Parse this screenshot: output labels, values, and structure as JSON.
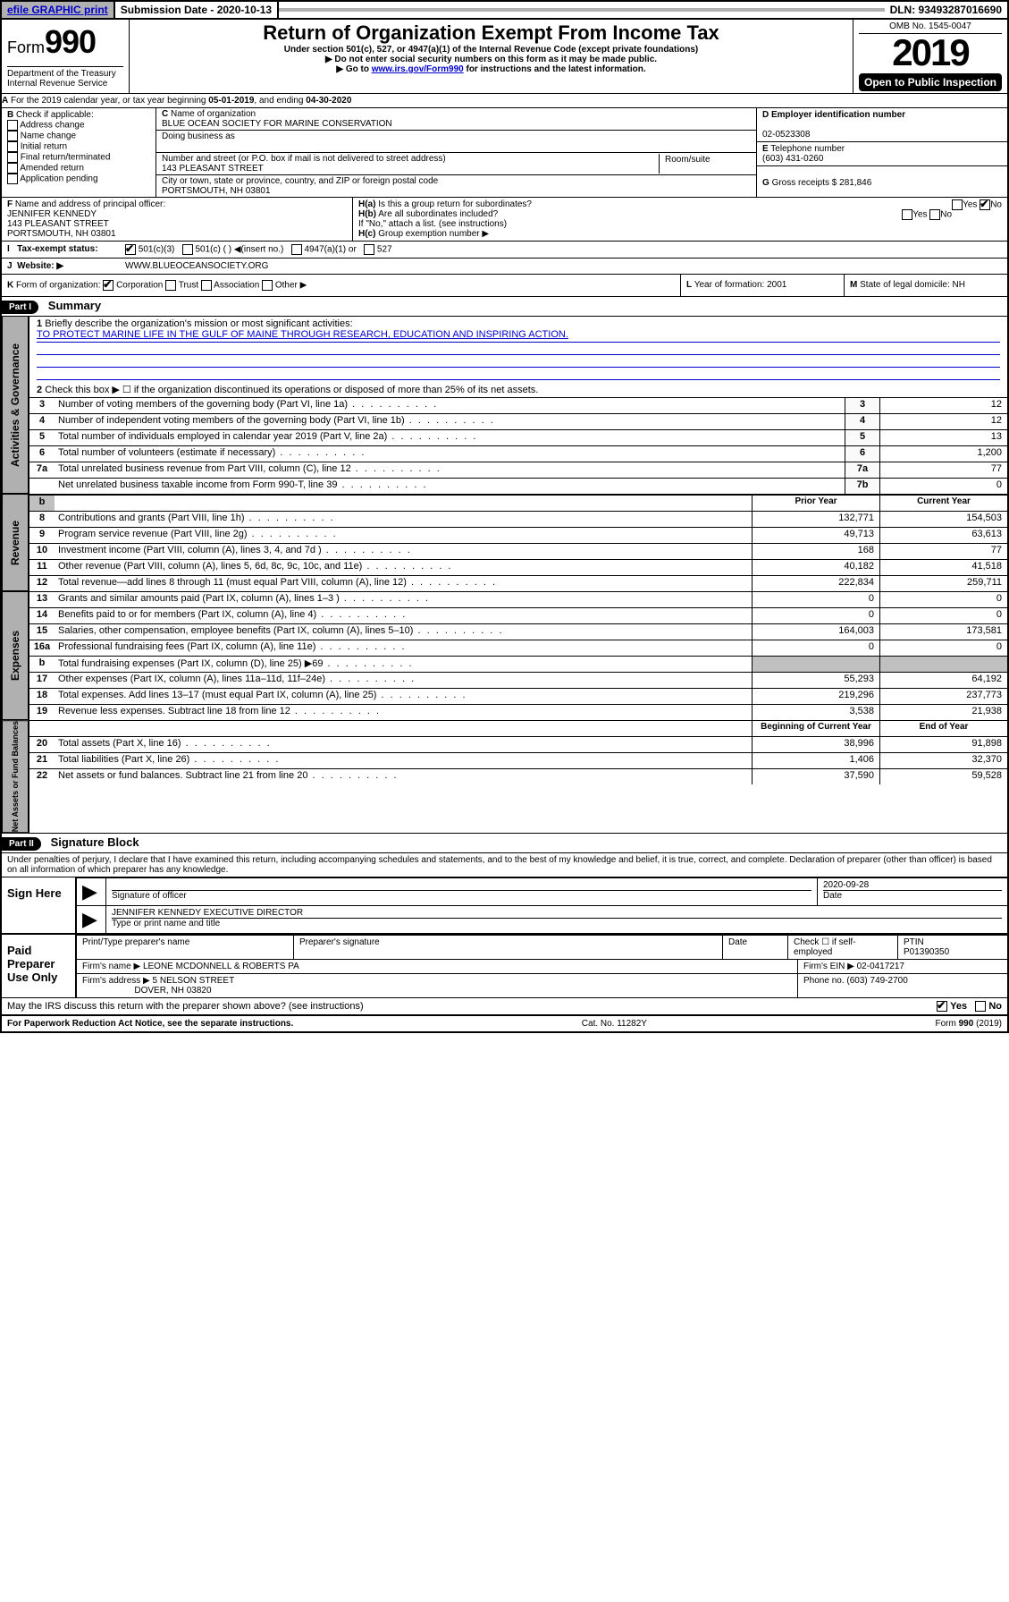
{
  "colors": {
    "link_blue": "#0000cc",
    "shade_gray": "#b0b0b0",
    "black": "#000000",
    "white": "#ffffff"
  },
  "topbar": {
    "efile": "efile GRAPHIC print",
    "subdate_label": "Submission Date - 2020-10-13",
    "dln": "DLN: 93493287016690"
  },
  "header": {
    "form_prefix": "Form",
    "form_no": "990",
    "title": "Return of Organization Exempt From Income Tax",
    "subtitle": "Under section 501(c), 527, or 4947(a)(1) of the Internal Revenue Code (except private foundations)",
    "note1": "Do not enter social security numbers on this form as it may be made public.",
    "note2_pre": "Go to ",
    "note2_link": "www.irs.gov/Form990",
    "note2_post": " for instructions and the latest information.",
    "omb": "OMB No. 1545-0047",
    "year": "2019",
    "open": "Open to Public Inspection",
    "dept": "Department of the Treasury",
    "irs": "Internal Revenue Service"
  },
  "A": {
    "text_pre": "For the 2019 calendar year, or tax year beginning ",
    "begin": "05-01-2019",
    "mid": ", and ending ",
    "end": "04-30-2020"
  },
  "B": {
    "label": "Check if applicable:",
    "items": [
      "Address change",
      "Name change",
      "Initial return",
      "Final return/terminated",
      "Amended return",
      "Application pending"
    ]
  },
  "C": {
    "name_label": "Name of organization",
    "name": "BLUE OCEAN SOCIETY FOR MARINE CONSERVATION",
    "dba_label": "Doing business as",
    "dba": "",
    "addr_label": "Number and street (or P.O. box if mail is not delivered to street address)",
    "addr": "143 PLEASANT STREET",
    "room_label": "Room/suite",
    "room": "",
    "city_label": "City or town, state or province, country, and ZIP or foreign postal code",
    "city": "PORTSMOUTH, NH  03801"
  },
  "D": {
    "label": "Employer identification number",
    "value": "02-0523308"
  },
  "E": {
    "label": "Telephone number",
    "value": "(603) 431-0260"
  },
  "G": {
    "label": "Gross receipts $",
    "value": "281,846"
  },
  "F": {
    "label": "Name and address of principal officer:",
    "name": "JENNIFER KENNEDY",
    "addr1": "143 PLEASANT STREET",
    "addr2": "PORTSMOUTH, NH  03801"
  },
  "H": {
    "a": "Is this a group return for subordinates?",
    "a_yes": "Yes",
    "a_no": "No",
    "b": "Are all subordinates included?",
    "b_yes": "Yes",
    "b_no": "No",
    "b_note": "If \"No,\" attach a list. (see instructions)",
    "c": "Group exemption number ▶"
  },
  "I": {
    "label": "Tax-exempt status:",
    "opt1": "501(c)(3)",
    "opt2": "501(c) ( ) ◀(insert no.)",
    "opt3": "4947(a)(1) or",
    "opt4": "527"
  },
  "J": {
    "label": "Website: ▶",
    "value": "WWW.BLUEOCEANSOCIETY.ORG"
  },
  "K": {
    "label": "Form of organization:",
    "opts": [
      "Corporation",
      "Trust",
      "Association",
      "Other ▶"
    ]
  },
  "L": {
    "label": "Year of formation:",
    "value": "2001"
  },
  "M": {
    "label": "State of legal domicile:",
    "value": "NH"
  },
  "part1": {
    "hdr": "Part I",
    "title": "Summary",
    "q1_label": "Briefly describe the organization's mission or most significant activities:",
    "q1_value": "TO PROTECT MARINE LIFE IN THE GULF OF MAINE THROUGH RESEARCH, EDUCATION AND INSPIRING ACTION.",
    "q2": "Check this box ▶ ☐  if the organization discontinued its operations or disposed of more than 25% of its net assets.",
    "sections": {
      "gov": "Activities & Governance",
      "rev": "Revenue",
      "exp": "Expenses",
      "net": "Net Assets or Fund Balances"
    },
    "col_prior": "Prior Year",
    "col_current": "Current Year",
    "col_begin": "Beginning of Current Year",
    "col_end": "End of Year",
    "lines_gov": [
      {
        "n": "3",
        "d": "Number of voting members of the governing body (Part VI, line 1a)",
        "box": "3",
        "v": "12"
      },
      {
        "n": "4",
        "d": "Number of independent voting members of the governing body (Part VI, line 1b)",
        "box": "4",
        "v": "12"
      },
      {
        "n": "5",
        "d": "Total number of individuals employed in calendar year 2019 (Part V, line 2a)",
        "box": "5",
        "v": "13"
      },
      {
        "n": "6",
        "d": "Total number of volunteers (estimate if necessary)",
        "box": "6",
        "v": "1,200"
      },
      {
        "n": "7a",
        "d": "Total unrelated business revenue from Part VIII, column (C), line 12",
        "box": "7a",
        "v": "77"
      },
      {
        "n": "",
        "d": "Net unrelated business taxable income from Form 990-T, line 39",
        "box": "7b",
        "v": "0"
      }
    ],
    "lines_rev": [
      {
        "n": "8",
        "d": "Contributions and grants (Part VIII, line 1h)",
        "p": "132,771",
        "c": "154,503"
      },
      {
        "n": "9",
        "d": "Program service revenue (Part VIII, line 2g)",
        "p": "49,713",
        "c": "63,613"
      },
      {
        "n": "10",
        "d": "Investment income (Part VIII, column (A), lines 3, 4, and 7d )",
        "p": "168",
        "c": "77"
      },
      {
        "n": "11",
        "d": "Other revenue (Part VIII, column (A), lines 5, 6d, 8c, 9c, 10c, and 11e)",
        "p": "40,182",
        "c": "41,518"
      },
      {
        "n": "12",
        "d": "Total revenue—add lines 8 through 11 (must equal Part VIII, column (A), line 12)",
        "p": "222,834",
        "c": "259,711"
      }
    ],
    "lines_exp": [
      {
        "n": "13",
        "d": "Grants and similar amounts paid (Part IX, column (A), lines 1–3 )",
        "p": "0",
        "c": "0"
      },
      {
        "n": "14",
        "d": "Benefits paid to or for members (Part IX, column (A), line 4)",
        "p": "0",
        "c": "0"
      },
      {
        "n": "15",
        "d": "Salaries, other compensation, employee benefits (Part IX, column (A), lines 5–10)",
        "p": "164,003",
        "c": "173,581"
      },
      {
        "n": "16a",
        "d": "Professional fundraising fees (Part IX, column (A), line 11e)",
        "p": "0",
        "c": "0"
      },
      {
        "n": "b",
        "d": "Total fundraising expenses (Part IX, column (D), line 25) ▶69",
        "p": "",
        "c": ""
      },
      {
        "n": "17",
        "d": "Other expenses (Part IX, column (A), lines 11a–11d, 11f–24e)",
        "p": "55,293",
        "c": "64,192"
      },
      {
        "n": "18",
        "d": "Total expenses. Add lines 13–17 (must equal Part IX, column (A), line 25)",
        "p": "219,296",
        "c": "237,773"
      },
      {
        "n": "19",
        "d": "Revenue less expenses. Subtract line 18 from line 12",
        "p": "3,538",
        "c": "21,938"
      }
    ],
    "lines_net": [
      {
        "n": "20",
        "d": "Total assets (Part X, line 16)",
        "p": "38,996",
        "c": "91,898"
      },
      {
        "n": "21",
        "d": "Total liabilities (Part X, line 26)",
        "p": "1,406",
        "c": "32,370"
      },
      {
        "n": "22",
        "d": "Net assets or fund balances. Subtract line 21 from line 20",
        "p": "37,590",
        "c": "59,528"
      }
    ]
  },
  "part2": {
    "hdr": "Part II",
    "title": "Signature Block",
    "decl": "Under penalties of perjury, I declare that I have examined this return, including accompanying schedules and statements, and to the best of my knowledge and belief, it is true, correct, and complete. Declaration of preparer (other than officer) is based on all information of which preparer has any knowledge."
  },
  "sign": {
    "label": "Sign Here",
    "sig_of": "Signature of officer",
    "date": "2020-09-28",
    "date_label": "Date",
    "name": "JENNIFER KENNEDY  EXECUTIVE DIRECTOR",
    "name_label": "Type or print name and title"
  },
  "preparer": {
    "label": "Paid Preparer Use Only",
    "h1": "Print/Type preparer's name",
    "h2": "Preparer's signature",
    "h3": "Date",
    "h4_a": "Check ☐ if self-employed",
    "h5": "PTIN",
    "ptin": "P01390350",
    "firm_label": "Firm's name   ▶",
    "firm": "LEONE MCDONNELL & ROBERTS PA",
    "ein_label": "Firm's EIN ▶",
    "ein": "02-0417217",
    "addr_label": "Firm's address ▶",
    "addr1": "5 NELSON STREET",
    "addr2": "DOVER, NH  03820",
    "phone_label": "Phone no.",
    "phone": "(603) 749-2700"
  },
  "discuss": {
    "q": "May the IRS discuss this return with the preparer shown above? (see instructions)",
    "yes": "Yes",
    "no": "No"
  },
  "footer": {
    "pra": "For Paperwork Reduction Act Notice, see the separate instructions.",
    "cat": "Cat. No. 11282Y",
    "form": "Form 990 (2019)"
  }
}
